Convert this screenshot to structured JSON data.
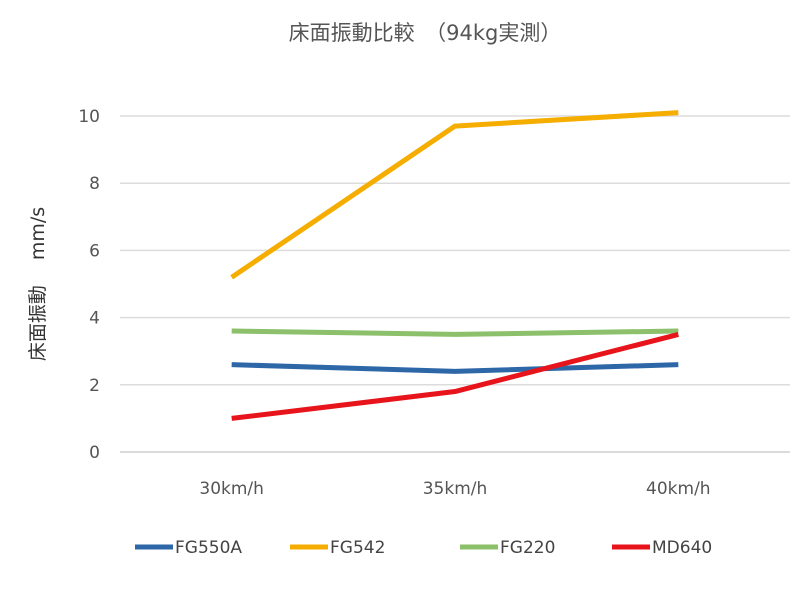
{
  "chart_data": {
    "type": "line",
    "title": "床面振動比較　（94kg実測）",
    "xlabel": "",
    "ylabel": "床面振動　 mm/s",
    "categories": [
      "30km/h",
      "35km/h",
      "40km/h"
    ],
    "ylim": [
      0,
      10
    ],
    "yticks": [
      "0",
      "2",
      "4",
      "6",
      "8",
      "10"
    ],
    "grid": true,
    "legend_position": "bottom",
    "series": [
      {
        "name": "FG550A",
        "color": "#2e67a8",
        "values": [
          2.6,
          2.4,
          2.6
        ]
      },
      {
        "name": "FG542",
        "color": "#f5ad00",
        "values": [
          5.2,
          9.7,
          10.1
        ]
      },
      {
        "name": "FG220",
        "color": "#8cc06a",
        "values": [
          3.6,
          3.5,
          3.6
        ]
      },
      {
        "name": "MD640",
        "color": "#e8141b",
        "values": [
          1.0,
          1.8,
          3.5
        ]
      }
    ]
  }
}
